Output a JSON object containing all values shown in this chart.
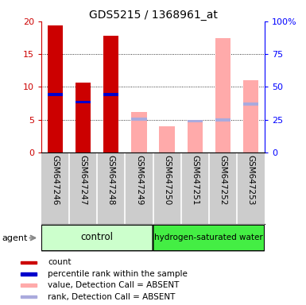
{
  "title": "GDS5215 / 1368961_at",
  "samples": [
    "GSM647246",
    "GSM647247",
    "GSM647248",
    "GSM647249",
    "GSM647250",
    "GSM647251",
    "GSM647252",
    "GSM647253"
  ],
  "bar_data": [
    {
      "type": "present",
      "count": 19.4,
      "rank": 8.8
    },
    {
      "type": "present",
      "count": 10.6,
      "rank": 7.7
    },
    {
      "type": "present",
      "count": 17.8,
      "rank": 8.8
    },
    {
      "type": "absent",
      "value": 6.2,
      "rank": 5.1
    },
    {
      "type": "absent",
      "value": 4.0,
      "rank": null
    },
    {
      "type": "absent",
      "value": 4.8,
      "rank": 4.8
    },
    {
      "type": "absent",
      "value": 17.4,
      "rank": 5.0
    },
    {
      "type": "absent",
      "value": 11.0,
      "rank": 7.4
    }
  ],
  "count_color": "#cc0000",
  "rank_color": "#0000cc",
  "absent_value_color": "#ffaaaa",
  "absent_rank_color": "#aaaadd",
  "ylim_left": [
    0,
    20
  ],
  "ylim_right": [
    0,
    100
  ],
  "yticks_left": [
    0,
    5,
    10,
    15,
    20
  ],
  "yticks_right": [
    0,
    25,
    50,
    75,
    100
  ],
  "ytick_labels_right": [
    "0",
    "25",
    "50",
    "75",
    "100%"
  ],
  "bar_width": 0.55,
  "plot_bg": "#ffffff",
  "sample_bg": "#cccccc",
  "control_color": "#ccffcc",
  "hydrogen_color": "#44ee44",
  "legend_items": [
    {
      "color": "#cc0000",
      "label": "count"
    },
    {
      "color": "#0000cc",
      "label": "percentile rank within the sample"
    },
    {
      "color": "#ffaaaa",
      "label": "value, Detection Call = ABSENT"
    },
    {
      "color": "#aaaadd",
      "label": "rank, Detection Call = ABSENT"
    }
  ]
}
